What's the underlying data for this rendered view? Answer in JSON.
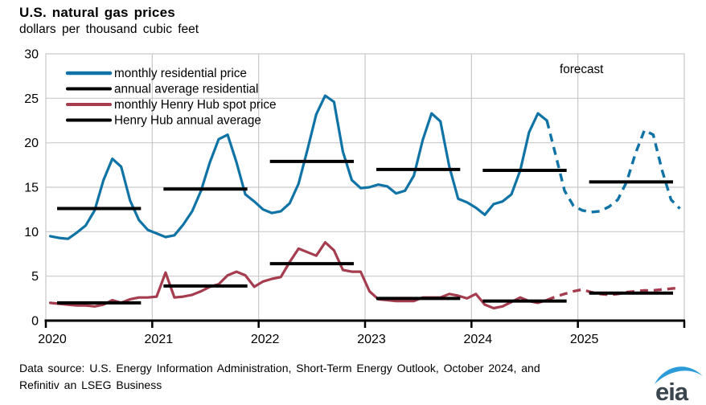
{
  "chart_data": {
    "type": "line",
    "title": "U.S. natural gas prices",
    "subtitle": "dollars per thousand cubic feet",
    "xlabel": "",
    "ylabel": "dollars per thousand cubic feet",
    "ylim": [
      0,
      30
    ],
    "yticks": [
      0,
      5,
      10,
      15,
      20,
      25,
      30
    ],
    "x_tick_labels": [
      "2020",
      "2021",
      "2022",
      "2023",
      "2024",
      "2025"
    ],
    "grid": true,
    "legend_position": "top-left-inside",
    "forecast_label": "forecast",
    "forecast_start_index": 57,
    "colors": {
      "residential": "#1073a6",
      "henry_hub": "#a53d4f",
      "average_bars": "#000000",
      "gridline": "#c9c9c9"
    },
    "series": [
      {
        "name": "monthly residential price",
        "kind": "monthly",
        "color": "#1073a6",
        "values": [
          9.5,
          9.3,
          9.2,
          9.9,
          10.7,
          12.4,
          15.8,
          18.2,
          17.3,
          13.5,
          11.3,
          10.2,
          9.8,
          9.4,
          9.6,
          10.8,
          12.3,
          14.6,
          17.8,
          20.4,
          20.9,
          17.8,
          14.2,
          13.4,
          12.5,
          12.1,
          12.3,
          13.2,
          15.4,
          19.2,
          23.2,
          25.3,
          24.6,
          19.0,
          15.8,
          14.9,
          15.0,
          15.3,
          15.1,
          14.3,
          14.6,
          16.3,
          20.3,
          23.3,
          22.4,
          17.3,
          13.7,
          13.3,
          12.7,
          11.9,
          13.1,
          13.4,
          14.2,
          16.9,
          21.2,
          23.3,
          22.5,
          18.6,
          14.6,
          12.9,
          12.4,
          12.2,
          12.3,
          12.8,
          13.6,
          15.6,
          18.8,
          21.4,
          20.9,
          16.9,
          13.6,
          12.6
        ]
      },
      {
        "name": "annual average residential",
        "kind": "annual-average",
        "color": "#000000",
        "values": [
          12.6,
          14.8,
          17.9,
          17.0,
          16.9,
          15.6
        ]
      },
      {
        "name": "monthly Henry Hub spot price",
        "kind": "monthly",
        "color": "#a53d4f",
        "values": [
          2.0,
          1.9,
          1.8,
          1.7,
          1.7,
          1.6,
          1.8,
          2.3,
          2.0,
          2.4,
          2.6,
          2.6,
          2.7,
          5.4,
          2.6,
          2.7,
          2.9,
          3.3,
          3.8,
          4.1,
          5.1,
          5.5,
          5.1,
          3.8,
          4.4,
          4.7,
          4.9,
          6.6,
          8.1,
          7.7,
          7.3,
          8.8,
          7.9,
          5.7,
          5.5,
          5.5,
          3.3,
          2.4,
          2.3,
          2.2,
          2.2,
          2.2,
          2.6,
          2.6,
          2.6,
          3.0,
          2.8,
          2.5,
          3.0,
          1.8,
          1.4,
          1.6,
          2.1,
          2.6,
          2.2,
          2.0,
          2.3,
          2.7,
          3.0,
          3.3,
          3.5,
          3.2,
          3.0,
          2.9,
          3.0,
          3.2,
          3.3,
          3.4,
          3.4,
          3.5,
          3.6,
          3.7
        ]
      },
      {
        "name": "Henry Hub annual average",
        "kind": "annual-average",
        "color": "#000000",
        "values": [
          2.0,
          3.9,
          6.4,
          2.5,
          2.2,
          3.1
        ]
      }
    ]
  },
  "footer": {
    "source": "Data source: U.S. Energy Information Administration, Short-Term Energy Outlook, October 2024, and Refinitiv an LSEG Business",
    "logo_text": "eia"
  }
}
